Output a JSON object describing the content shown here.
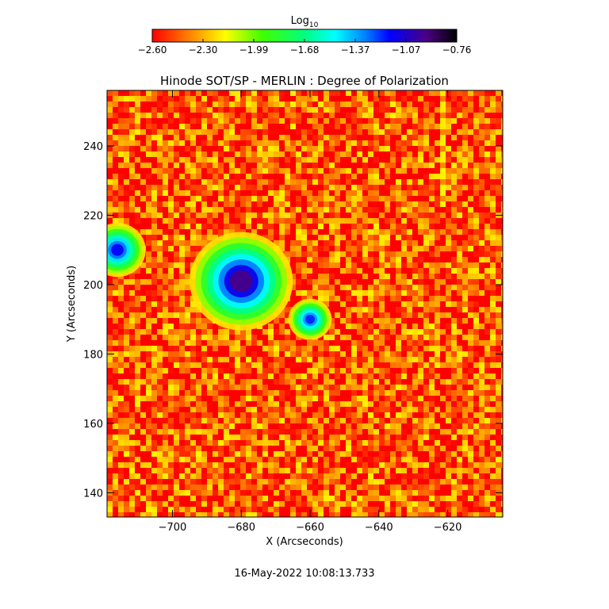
{
  "chart_data": {
    "type": "heatmap",
    "title": "Hinode SOT/SP - MERLIN : Degree of Polarization",
    "xlabel": "X (Arcseconds)",
    "ylabel": "Y (Arcseconds)",
    "xlim": [
      -719,
      -604
    ],
    "ylim": [
      133,
      256
    ],
    "xticks": [
      -700,
      -680,
      -660,
      -640,
      -620
    ],
    "yticks": [
      140,
      160,
      180,
      200,
      220,
      240
    ],
    "colorbar": {
      "label_base": "Log",
      "label_sub": "10",
      "colormap": "rainbow (red to violet to black)",
      "range": [
        -2.6,
        -0.76
      ],
      "ticks": [
        "-2.60",
        "-2.30",
        "-1.99",
        "-1.68",
        "-1.37",
        "-1.07",
        "-0.76"
      ],
      "position": "top"
    },
    "features": [
      {
        "kind": "sunspot umbra",
        "x": -680,
        "y": 201,
        "log10_value": -0.95
      },
      {
        "kind": "pore",
        "x": -716,
        "y": 210,
        "log10_value": -1.15
      },
      {
        "kind": "pore",
        "x": -660,
        "y": 190,
        "log10_value": -1.2
      }
    ],
    "background_log10_value": -2.45
  },
  "footer": {
    "timestamp": "16-May-2022 10:08:13.733"
  }
}
